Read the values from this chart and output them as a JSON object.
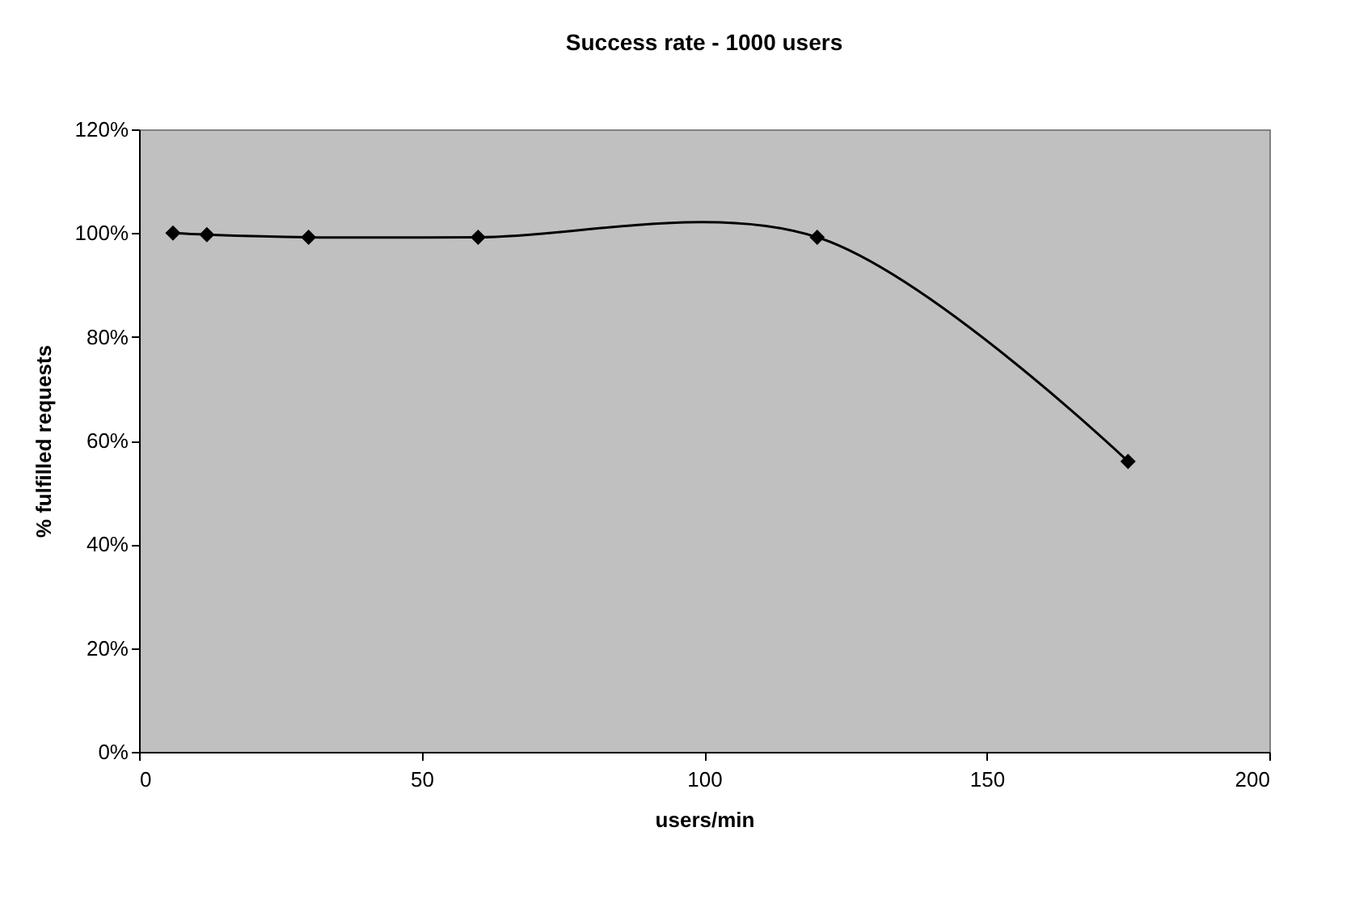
{
  "chart_data": {
    "type": "line",
    "title": "Success rate - 1000 users",
    "xlabel": "users/min",
    "ylabel": "% fulfilled requests",
    "x": [
      6,
      12,
      30,
      60,
      120,
      175
    ],
    "series": [
      {
        "color": "#000000",
        "values": [
          100,
          99.7,
          99.2,
          99.2,
          99.2,
          56
        ]
      }
    ],
    "xlim": [
      0,
      200
    ],
    "xticks": [
      0,
      50,
      100,
      150,
      200
    ],
    "ylim": [
      0,
      120
    ],
    "yticks": [
      {
        "value": 0,
        "label": "0%"
      },
      {
        "value": 20,
        "label": "20%"
      },
      {
        "value": 40,
        "label": "40%"
      },
      {
        "value": 60,
        "label": "60%"
      },
      {
        "value": 80,
        "label": "80%"
      },
      {
        "value": 100,
        "label": "100%"
      },
      {
        "value": 120,
        "label": "120%"
      }
    ],
    "grid": false,
    "marker": "diamond",
    "line_style": "solid"
  }
}
